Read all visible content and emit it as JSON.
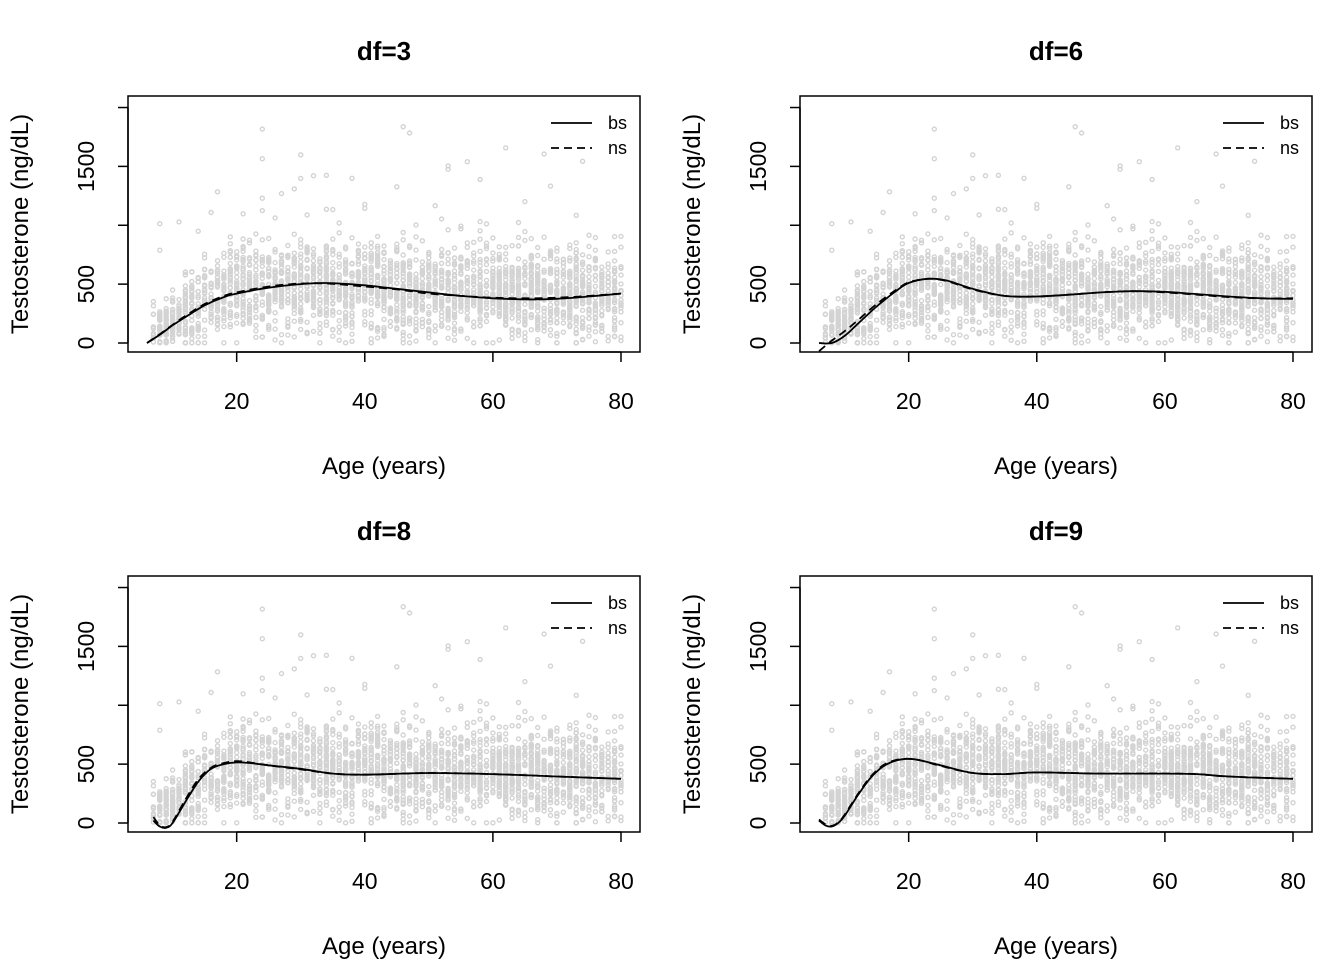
{
  "figure": {
    "background": "#ffffff",
    "point_color": "#d3d3d3",
    "line_color": "#000000"
  },
  "chart_data": [
    {
      "type": "line",
      "title": "df=3",
      "xlabel": "Age (years)",
      "ylabel": "Testosterone (ng/dL)",
      "xlim": [
        6,
        80
      ],
      "ylim": [
        0,
        2030
      ],
      "x_ticks": [
        20,
        40,
        60,
        80
      ],
      "y_ticks": [
        0,
        500,
        1500
      ],
      "y_tick_labels": [
        "0",
        "500",
        "1500"
      ],
      "legend": {
        "position": "top-right",
        "entries": [
          "bs",
          "ns"
        ]
      },
      "background_points": "scatter of individual Testosterone observations vs Age (gray)",
      "series": [
        {
          "name": "bs",
          "style": "solid",
          "x": [
            6,
            8,
            10,
            12,
            15,
            18,
            20,
            25,
            30,
            34,
            40,
            45,
            50,
            55,
            60,
            65,
            70,
            75,
            80
          ],
          "y": [
            0,
            70,
            150,
            220,
            320,
            390,
            420,
            470,
            500,
            510,
            490,
            460,
            430,
            400,
            380,
            370,
            375,
            395,
            420
          ]
        },
        {
          "name": "ns",
          "style": "dashed",
          "x": [
            6,
            8,
            10,
            12,
            15,
            18,
            20,
            25,
            30,
            34,
            40,
            45,
            50,
            55,
            60,
            65,
            70,
            75,
            80
          ],
          "y": [
            0,
            75,
            155,
            230,
            330,
            400,
            430,
            480,
            505,
            505,
            480,
            455,
            420,
            400,
            385,
            380,
            385,
            400,
            420
          ]
        }
      ]
    },
    {
      "type": "line",
      "title": "df=6",
      "xlabel": "Age (years)",
      "ylabel": "Testosterone (ng/dL)",
      "xlim": [
        6,
        80
      ],
      "ylim": [
        0,
        2030
      ],
      "x_ticks": [
        20,
        40,
        60,
        80
      ],
      "y_ticks": [
        0,
        500,
        1500
      ],
      "y_tick_labels": [
        "0",
        "500",
        "1500"
      ],
      "legend": {
        "position": "top-right",
        "entries": [
          "bs",
          "ns"
        ]
      },
      "background_points": "scatter of individual Testosterone observations vs Age (gray)",
      "series": [
        {
          "name": "bs",
          "style": "solid",
          "x": [
            6,
            8,
            10,
            12,
            15,
            18,
            20,
            23,
            26,
            30,
            35,
            40,
            45,
            50,
            55,
            60,
            65,
            70,
            75,
            80
          ],
          "y": [
            0,
            0,
            60,
            160,
            310,
            440,
            510,
            545,
            530,
            460,
            400,
            395,
            410,
            430,
            440,
            435,
            415,
            395,
            380,
            375
          ]
        },
        {
          "name": "ns",
          "style": "dashed",
          "x": [
            6,
            8,
            10,
            12,
            15,
            18,
            20,
            23,
            26,
            30,
            35,
            40,
            45,
            50,
            55,
            60,
            65,
            70,
            75,
            80
          ],
          "y": [
            -70,
            20,
            100,
            190,
            330,
            450,
            515,
            545,
            525,
            455,
            400,
            395,
            410,
            430,
            440,
            430,
            410,
            390,
            380,
            380
          ]
        }
      ]
    },
    {
      "type": "line",
      "title": "df=8",
      "xlabel": "Age (years)",
      "ylabel": "Testosterone (ng/dL)",
      "xlim": [
        6,
        80
      ],
      "ylim": [
        0,
        2030
      ],
      "x_ticks": [
        20,
        40,
        60,
        80
      ],
      "y_ticks": [
        0,
        500,
        1500
      ],
      "y_tick_labels": [
        "0",
        "500",
        "1500"
      ],
      "legend": {
        "position": "top-right",
        "entries": [
          "bs",
          "ns"
        ]
      },
      "background_points": "scatter of individual Testosterone observations vs Age (gray)",
      "series": [
        {
          "name": "bs",
          "style": "solid",
          "x": [
            7,
            8,
            9,
            10,
            12,
            14,
            16,
            18,
            20,
            22,
            25,
            30,
            35,
            40,
            50,
            60,
            70,
            80
          ],
          "y": [
            20,
            -30,
            -40,
            0,
            180,
            350,
            460,
            500,
            515,
            510,
            490,
            460,
            420,
            410,
            425,
            415,
            395,
            375
          ]
        },
        {
          "name": "ns",
          "style": "dashed",
          "x": [
            7,
            8,
            9,
            10,
            12,
            14,
            16,
            18,
            20,
            22,
            25,
            30,
            35,
            40,
            50,
            60,
            70,
            80
          ],
          "y": [
            50,
            -20,
            -35,
            10,
            200,
            370,
            470,
            510,
            525,
            515,
            490,
            455,
            420,
            410,
            425,
            415,
            395,
            375
          ]
        }
      ]
    },
    {
      "type": "line",
      "title": "df=9",
      "xlabel": "Age (years)",
      "ylabel": "Testosterone (ng/dL)",
      "xlim": [
        6,
        80
      ],
      "ylim": [
        0,
        2030
      ],
      "x_ticks": [
        20,
        40,
        60,
        80
      ],
      "y_ticks": [
        0,
        500,
        1500
      ],
      "y_tick_labels": [
        "0",
        "500",
        "1500"
      ],
      "legend": {
        "position": "top-right",
        "entries": [
          "bs",
          "ns"
        ]
      },
      "background_points": "scatter of individual Testosterone observations vs Age (gray)",
      "series": [
        {
          "name": "bs",
          "style": "solid",
          "x": [
            6,
            7,
            8,
            9,
            10,
            12,
            14,
            16,
            18,
            20,
            22,
            25,
            30,
            35,
            40,
            50,
            60,
            65,
            70,
            80
          ],
          "y": [
            20,
            -20,
            -30,
            0,
            60,
            230,
            380,
            480,
            530,
            545,
            530,
            490,
            425,
            415,
            430,
            420,
            420,
            415,
            395,
            375
          ]
        },
        {
          "name": "ns",
          "style": "dashed",
          "x": [
            6,
            7,
            8,
            9,
            10,
            12,
            14,
            16,
            18,
            20,
            22,
            25,
            30,
            35,
            40,
            50,
            60,
            65,
            70,
            80
          ],
          "y": [
            30,
            -10,
            -25,
            5,
            70,
            240,
            390,
            490,
            535,
            545,
            530,
            485,
            425,
            415,
            430,
            420,
            420,
            415,
            395,
            375
          ]
        }
      ]
    }
  ]
}
